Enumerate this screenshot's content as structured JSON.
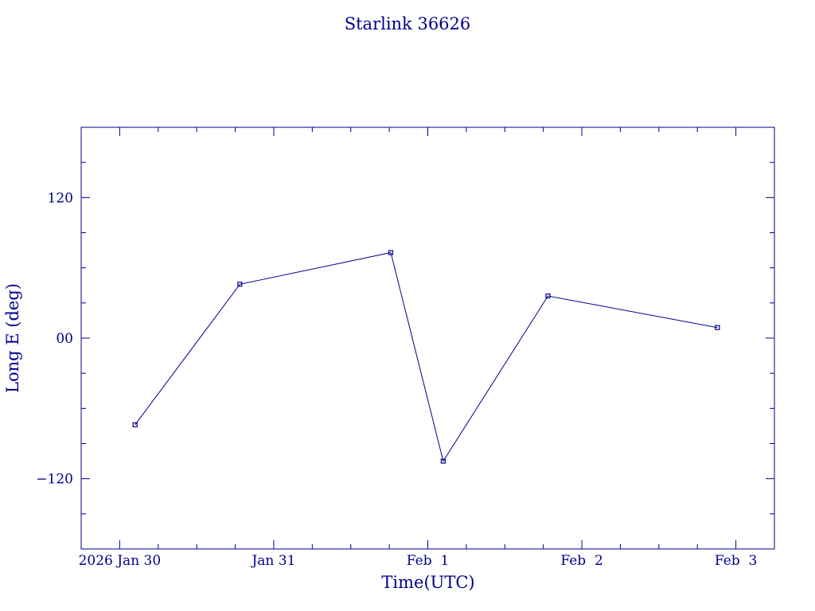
{
  "chart_data": {
    "type": "line",
    "title": "Starlink 36626",
    "xlabel": "Time(UTC)",
    "ylabel": "Long E (deg)",
    "x_ticks": [
      {
        "label": "2026 Jan 30",
        "value": 0
      },
      {
        "label": "Jan 31",
        "value": 1
      },
      {
        "label": "Feb  1",
        "value": 2
      },
      {
        "label": "Feb  2",
        "value": 3
      },
      {
        "label": "Feb  3",
        "value": 4
      }
    ],
    "y_ticks": [
      {
        "label": "120",
        "value": 120
      },
      {
        "label": "00",
        "value": 0
      },
      {
        "label": "−120",
        "value": -120
      }
    ],
    "xlim": [
      -0.25,
      4.25
    ],
    "ylim": [
      -180,
      180
    ],
    "series": [
      {
        "color": "#00008b",
        "marker": "square",
        "x": [
          0.1,
          0.78,
          1.76,
          2.1,
          2.78,
          3.88
        ],
        "y": [
          -74,
          46,
          73,
          -105,
          36,
          9
        ]
      }
    ],
    "grid": false
  },
  "colors": {
    "axis": "#00008b",
    "line": "#00008b",
    "background": "#ffffff"
  }
}
